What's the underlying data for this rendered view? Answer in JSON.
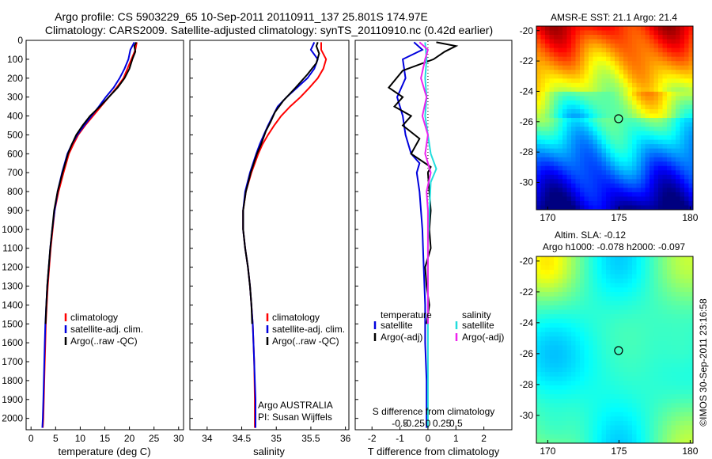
{
  "title_line1": "Argo profile: CS 5903229_65 10-Sep-2011 20110911_137 25.801S 174.97E",
  "title_line2": "Climatology: CARS2009. Satellite-adjusted climatology: synTS_20110910.nc (0.42d earlier)",
  "copyright": "©IMOS 30-Sep-2011 23:16:58",
  "colors": {
    "climatology": "#ff0000",
    "satellite": "#0000dd",
    "argo": "#000000",
    "sat_salinity": "#22dddd",
    "argo_adj_salinity": "#ee22ee"
  },
  "chart_data": [
    {
      "type": "line",
      "id": "temperature",
      "xlabel": "temperature (deg C)",
      "xlim": [
        -1,
        31
      ],
      "xticks": [
        0,
        5,
        10,
        15,
        20,
        25,
        30
      ],
      "ylim": [
        2060,
        0
      ],
      "yticks": [
        0,
        100,
        200,
        300,
        400,
        500,
        600,
        700,
        800,
        900,
        1000,
        1100,
        1200,
        1300,
        1400,
        1500,
        1600,
        1700,
        1800,
        1900,
        2000
      ],
      "legend": [
        "climatology",
        "satellite-adj. clim.",
        "Argo(..raw -QC)"
      ],
      "series": [
        {
          "name": "climatology",
          "points": [
            [
              21.5,
              10
            ],
            [
              21.2,
              50
            ],
            [
              20.4,
              100
            ],
            [
              19.6,
              150
            ],
            [
              18.8,
              200
            ],
            [
              17.4,
              250
            ],
            [
              15.8,
              300
            ],
            [
              14.2,
              350
            ],
            [
              12.6,
              400
            ],
            [
              11.0,
              450
            ],
            [
              9.6,
              500
            ],
            [
              8.6,
              550
            ],
            [
              7.7,
              600
            ],
            [
              6.6,
              700
            ],
            [
              5.6,
              800
            ],
            [
              4.8,
              900
            ],
            [
              4.4,
              1000
            ],
            [
              4.0,
              1100
            ],
            [
              3.7,
              1200
            ],
            [
              3.4,
              1300
            ],
            [
              3.2,
              1400
            ],
            [
              3.0,
              1500
            ],
            [
              2.9,
              1600
            ],
            [
              2.8,
              1700
            ],
            [
              2.7,
              1800
            ],
            [
              2.6,
              1900
            ],
            [
              2.5,
              2000
            ],
            [
              2.4,
              2050
            ]
          ]
        },
        {
          "name": "satellite",
          "points": [
            [
              21.0,
              10
            ],
            [
              20.2,
              50
            ],
            [
              19.8,
              100
            ],
            [
              19.0,
              150
            ],
            [
              18.0,
              200
            ],
            [
              16.8,
              250
            ],
            [
              15.2,
              300
            ],
            [
              13.8,
              350
            ],
            [
              12.3,
              400
            ],
            [
              10.8,
              450
            ],
            [
              9.4,
              500
            ],
            [
              8.3,
              550
            ],
            [
              7.4,
              600
            ],
            [
              6.3,
              700
            ],
            [
              5.4,
              800
            ],
            [
              4.8,
              900
            ],
            [
              4.3,
              1000
            ],
            [
              3.9,
              1100
            ],
            [
              3.6,
              1200
            ],
            [
              3.3,
              1300
            ],
            [
              3.1,
              1400
            ],
            [
              2.9,
              1500
            ],
            [
              2.8,
              1600
            ],
            [
              2.7,
              1700
            ],
            [
              2.6,
              1800
            ],
            [
              2.5,
              1900
            ],
            [
              2.4,
              2000
            ],
            [
              2.3,
              2050
            ]
          ]
        },
        {
          "name": "argo",
          "points": [
            [
              21.4,
              10
            ],
            [
              21.0,
              30
            ],
            [
              21.2,
              60
            ],
            [
              20.6,
              100
            ],
            [
              20.0,
              150
            ],
            [
              19.0,
              200
            ],
            [
              17.6,
              250
            ],
            [
              15.8,
              300
            ],
            [
              14.0,
              350
            ],
            [
              12.0,
              400
            ],
            [
              10.5,
              450
            ],
            [
              9.2,
              500
            ],
            [
              8.3,
              550
            ],
            [
              7.5,
              600
            ],
            [
              6.4,
              700
            ],
            [
              5.4,
              800
            ],
            [
              4.7,
              900
            ],
            [
              4.3,
              1000
            ],
            [
              3.9,
              1100
            ],
            [
              3.6,
              1200
            ],
            [
              3.3,
              1300
            ],
            [
              3.1,
              1400
            ],
            [
              2.95,
              1500
            ]
          ]
        }
      ]
    },
    {
      "type": "line",
      "id": "salinity",
      "xlabel": "salinity",
      "xlim": [
        33.75,
        36.05
      ],
      "xticks": [
        34,
        34.5,
        35,
        35.5,
        36
      ],
      "ylim": [
        2060,
        0
      ],
      "legend": [
        "climatology",
        "satellite-adj. clim.",
        "Argo(..raw -QC)"
      ],
      "annotation": [
        "Argo AUSTRALIA",
        "PI: Susan Wijffels"
      ],
      "series": [
        {
          "name": "climatology",
          "points": [
            [
              35.65,
              10
            ],
            [
              35.65,
              50
            ],
            [
              35.72,
              100
            ],
            [
              35.68,
              150
            ],
            [
              35.6,
              200
            ],
            [
              35.48,
              250
            ],
            [
              35.35,
              300
            ],
            [
              35.2,
              350
            ],
            [
              35.07,
              400
            ],
            [
              34.97,
              450
            ],
            [
              34.88,
              500
            ],
            [
              34.8,
              550
            ],
            [
              34.74,
              600
            ],
            [
              34.64,
              700
            ],
            [
              34.56,
              800
            ],
            [
              34.52,
              900
            ],
            [
              34.52,
              1000
            ],
            [
              34.55,
              1100
            ],
            [
              34.59,
              1200
            ],
            [
              34.62,
              1300
            ],
            [
              34.64,
              1400
            ],
            [
              34.66,
              1500
            ],
            [
              34.67,
              1600
            ],
            [
              34.68,
              1700
            ],
            [
              34.685,
              1800
            ],
            [
              34.69,
              1900
            ],
            [
              34.69,
              2000
            ],
            [
              34.69,
              2050
            ]
          ]
        },
        {
          "name": "satellite",
          "points": [
            [
              35.55,
              10
            ],
            [
              35.5,
              50
            ],
            [
              35.6,
              100
            ],
            [
              35.55,
              150
            ],
            [
              35.45,
              200
            ],
            [
              35.3,
              250
            ],
            [
              35.15,
              300
            ],
            [
              35.02,
              350
            ],
            [
              34.95,
              400
            ],
            [
              34.88,
              450
            ],
            [
              34.82,
              500
            ],
            [
              34.76,
              550
            ],
            [
              34.71,
              600
            ],
            [
              34.62,
              700
            ],
            [
              34.55,
              800
            ],
            [
              34.52,
              900
            ],
            [
              34.52,
              1000
            ],
            [
              34.55,
              1100
            ],
            [
              34.59,
              1200
            ],
            [
              34.62,
              1300
            ],
            [
              34.64,
              1400
            ],
            [
              34.66,
              1500
            ],
            [
              34.67,
              1600
            ],
            [
              34.68,
              1700
            ],
            [
              34.69,
              1800
            ],
            [
              34.7,
              1900
            ],
            [
              34.7,
              2000
            ],
            [
              34.7,
              2050
            ]
          ]
        },
        {
          "name": "argo",
          "points": [
            [
              35.6,
              10
            ],
            [
              35.58,
              30
            ],
            [
              35.62,
              70
            ],
            [
              35.58,
              120
            ],
            [
              35.45,
              180
            ],
            [
              35.28,
              250
            ],
            [
              35.1,
              320
            ],
            [
              34.98,
              380
            ],
            [
              34.92,
              430
            ],
            [
              34.85,
              480
            ],
            [
              34.78,
              550
            ],
            [
              34.72,
              600
            ],
            [
              34.63,
              700
            ],
            [
              34.56,
              800
            ],
            [
              34.52,
              900
            ],
            [
              34.52,
              1000
            ],
            [
              34.55,
              1100
            ],
            [
              34.59,
              1200
            ],
            [
              34.62,
              1300
            ],
            [
              34.64,
              1400
            ],
            [
              34.65,
              1500
            ]
          ]
        }
      ]
    },
    {
      "type": "line",
      "id": "difference",
      "xlabel": "T difference from climatology",
      "xlabel_top": "S difference from climatology",
      "xlim": [
        -2.6,
        3.0
      ],
      "xticks": [
        -2,
        -1,
        0,
        1,
        2
      ],
      "s_xticks": [
        -0.5,
        -0.25,
        0,
        0.25,
        0.5
      ],
      "ylim": [
        2060,
        0
      ],
      "legend_temperature": [
        "temperature",
        "satellite",
        "Argo(-adj)"
      ],
      "legend_salinity": [
        "salinity",
        "satellite",
        "Argo(-adj)"
      ],
      "series": [
        {
          "name": "temp_satellite",
          "points": [
            [
              -0.5,
              10
            ],
            [
              -0.2,
              50
            ],
            [
              -0.9,
              100
            ],
            [
              -0.8,
              200
            ],
            [
              -1.1,
              300
            ],
            [
              -0.9,
              400
            ],
            [
              -0.8,
              500
            ],
            [
              -0.6,
              600
            ],
            [
              -0.3,
              650
            ],
            [
              -0.4,
              700
            ],
            [
              -0.3,
              800
            ],
            [
              -0.25,
              900
            ],
            [
              -0.2,
              1000
            ],
            [
              -0.15,
              1200
            ],
            [
              -0.1,
              1400
            ],
            [
              -0.1,
              1600
            ],
            [
              -0.05,
              1800
            ],
            [
              -0.05,
              2050
            ]
          ]
        },
        {
          "name": "temp_argo",
          "points": [
            [
              0.3,
              10
            ],
            [
              1.0,
              30
            ],
            [
              0.6,
              60
            ],
            [
              0.2,
              100
            ],
            [
              -0.9,
              160
            ],
            [
              -1.4,
              250
            ],
            [
              -0.9,
              300
            ],
            [
              -1.2,
              350
            ],
            [
              -0.6,
              400
            ],
            [
              -0.9,
              450
            ],
            [
              -0.3,
              520
            ],
            [
              -0.6,
              600
            ],
            [
              0.1,
              670
            ],
            [
              0.0,
              700
            ],
            [
              0.1,
              900
            ],
            [
              0.05,
              1000
            ],
            [
              0.1,
              1100
            ],
            [
              -0.1,
              1200
            ],
            [
              -0.05,
              1300
            ],
            [
              0.05,
              1400
            ],
            [
              -0.05,
              1500
            ]
          ]
        },
        {
          "name": "sal_satellite",
          "points": [
            [
              -0.1,
              10
            ],
            [
              -0.05,
              100
            ],
            [
              -0.1,
              200
            ],
            [
              -0.05,
              300
            ],
            [
              -0.1,
              400
            ],
            [
              0.0,
              500
            ],
            [
              0.1,
              600
            ],
            [
              0.3,
              680
            ],
            [
              0.1,
              750
            ],
            [
              0.05,
              900
            ],
            [
              0.0,
              1100
            ],
            [
              0.0,
              2050
            ]
          ]
        },
        {
          "name": "sal_argo",
          "points": [
            [
              -0.3,
              10
            ],
            [
              0.0,
              50
            ],
            [
              -0.1,
              100
            ],
            [
              -0.25,
              200
            ],
            [
              -0.05,
              300
            ],
            [
              -0.2,
              400
            ],
            [
              0.0,
              500
            ],
            [
              -0.1,
              600
            ],
            [
              0.1,
              700
            ],
            [
              -0.05,
              800
            ],
            [
              0.0,
              900
            ],
            [
              0.0,
              1500
            ]
          ]
        }
      ]
    },
    {
      "type": "heatmap",
      "id": "sst_map",
      "title": "AMSR-E SST: 21.1  Argo: 21.4",
      "xticks": [
        170,
        175,
        180
      ],
      "yticks": [
        -20,
        -22,
        -24,
        -26,
        -28,
        -30
      ],
      "xlim": [
        169.2,
        180.2
      ],
      "ylim": [
        -31.8,
        -19.7
      ],
      "marker": [
        174.97,
        -25.8
      ]
    },
    {
      "type": "heatmap",
      "id": "sla_map",
      "title_line1": "Altim. SLA: -0.12",
      "title_line2": "Argo h1000: -0.078 h2000: -0.097",
      "xticks": [
        170,
        175,
        180
      ],
      "yticks": [
        -20,
        -22,
        -24,
        -26,
        -28,
        -30
      ],
      "xlim": [
        169.2,
        180.2
      ],
      "ylim": [
        -31.8,
        -19.7
      ],
      "marker": [
        174.97,
        -25.8
      ]
    }
  ]
}
